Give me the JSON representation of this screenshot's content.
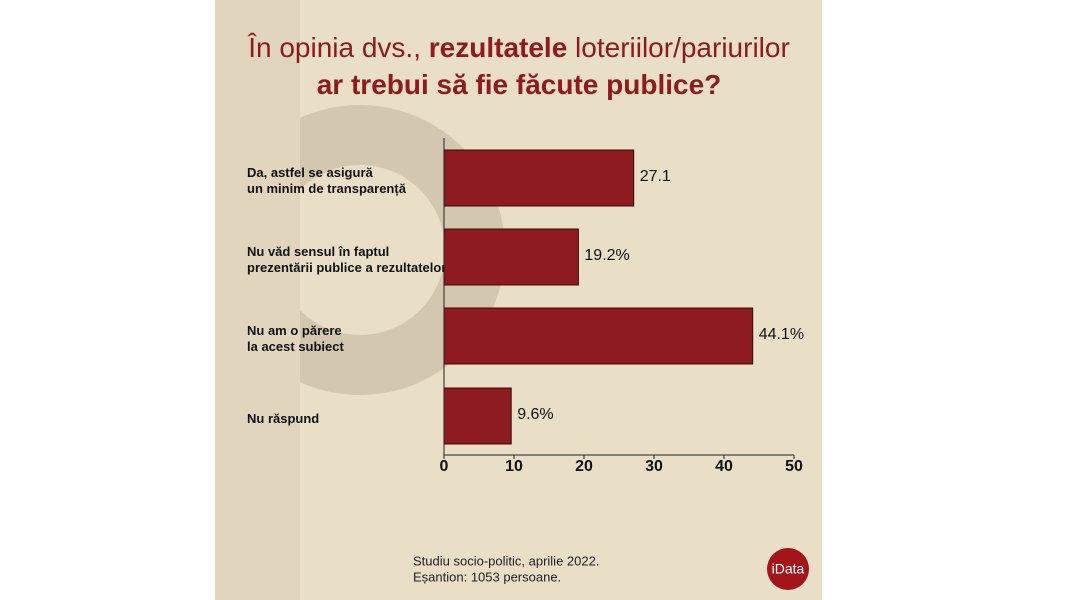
{
  "chart_data": {
    "type": "bar",
    "orientation": "horizontal",
    "title": [
      [
        {
          "text": "În opinia dvs., ",
          "bold": false
        },
        {
          "text": "rezultatele",
          "bold": true
        },
        {
          "text": " loteriilor/pariurilor",
          "bold": false
        }
      ],
      [
        {
          "text": "ar trebui să fie făcute publice?",
          "bold": true
        }
      ]
    ],
    "categories": [
      [
        "Da, astfel se asigură",
        "un minim de transparență"
      ],
      [
        "Nu văd sensul în faptul",
        "prezentării publice a rezultatelor"
      ],
      [
        "Nu am o părere",
        "la acest subiect"
      ],
      [
        "Nu răspund"
      ]
    ],
    "values": [
      27.1,
      19.2,
      44.1,
      9.6
    ],
    "value_labels": [
      "27.1",
      "19.2%",
      "44.1%",
      "9.6%"
    ],
    "color": "#8e1b20",
    "xlim": [
      0,
      50
    ],
    "xticks": [
      0,
      10,
      20,
      30,
      40,
      50
    ],
    "footnote": [
      "Studiu socio-politic, aprilie 2022.",
      "Eșantion: 1053 persoane."
    ],
    "logo": "iData"
  }
}
